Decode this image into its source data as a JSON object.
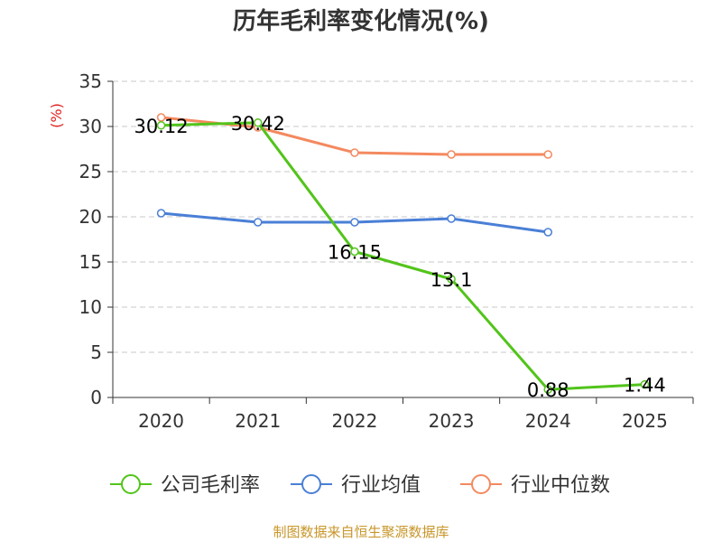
{
  "chart_data": {
    "type": "line",
    "title": "历年毛利率变化情况(%)",
    "ylabel": "(%)",
    "xlabel": "",
    "categories": [
      "2020",
      "2021",
      "2022",
      "2023",
      "2024",
      "2025"
    ],
    "ylim": [
      0,
      35
    ],
    "yticks": [
      0,
      5,
      10,
      15,
      20,
      25,
      30,
      35
    ],
    "grid": true,
    "legend_position": "bottom",
    "series": [
      {
        "name": "公司毛利率",
        "color": "#52c41a",
        "values": [
          30.12,
          30.42,
          16.15,
          13.1,
          0.88,
          1.44
        ],
        "labels": [
          "30.12",
          "30.42",
          "16.15",
          "13.1",
          "0.88",
          "1.44"
        ]
      },
      {
        "name": "行业均值",
        "color": "#4a7fd6",
        "values": [
          20.4,
          19.4,
          19.4,
          19.8,
          18.3,
          null
        ]
      },
      {
        "name": "行业中位数",
        "color": "#f4895f",
        "values": [
          31.0,
          29.9,
          27.1,
          26.9,
          26.9,
          null
        ]
      }
    ],
    "source": "制图数据来自恒生聚源数据库"
  }
}
